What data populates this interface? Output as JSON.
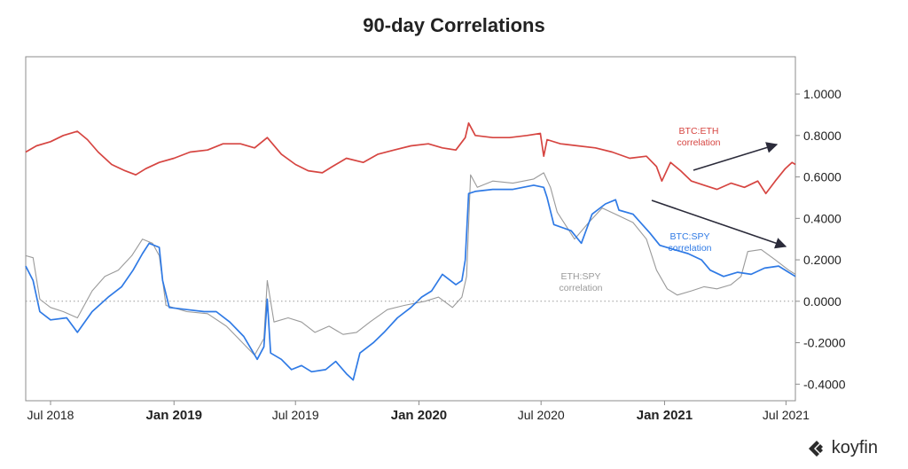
{
  "chart_data": {
    "type": "line",
    "title": "90-day Correlations",
    "xlabel": "",
    "ylabel": "",
    "x_ticks": [
      {
        "label": "Jul 2018",
        "date": "2018-07-01",
        "bold": false
      },
      {
        "label": "Jan 2019",
        "date": "2019-01-01",
        "bold": true
      },
      {
        "label": "Jul 2019",
        "date": "2019-07-01",
        "bold": false
      },
      {
        "label": "Jan 2020",
        "date": "2020-01-01",
        "bold": true
      },
      {
        "label": "Jul 2020",
        "date": "2020-07-01",
        "bold": false
      },
      {
        "label": "Jan 2021",
        "date": "2021-01-01",
        "bold": true
      },
      {
        "label": "Jul 2021",
        "date": "2021-07-01",
        "bold": false
      }
    ],
    "xlim": [
      "2018-05-25",
      "2021-07-15"
    ],
    "ylim": [
      -0.48,
      1.18
    ],
    "y_ticks": [
      {
        "label": "1.0000",
        "value": 1.0
      },
      {
        "label": "0.8000",
        "value": 0.8
      },
      {
        "label": "0.6000",
        "value": 0.6
      },
      {
        "label": "0.4000",
        "value": 0.4
      },
      {
        "label": "0.2000",
        "value": 0.2
      },
      {
        "label": "0.0000",
        "value": 0.0
      },
      {
        "label": "-0.2000",
        "value": -0.2
      },
      {
        "label": "-0.4000",
        "value": -0.4
      }
    ],
    "y_axis_position": "right",
    "zero_line": "dotted",
    "grid": false,
    "series": [
      {
        "name": "BTC:ETH correlation",
        "color": "#d64541",
        "points": [
          [
            "2018-05-25",
            0.72
          ],
          [
            "2018-06-10",
            0.75
          ],
          [
            "2018-07-01",
            0.77
          ],
          [
            "2018-07-20",
            0.8
          ],
          [
            "2018-08-10",
            0.82
          ],
          [
            "2018-08-25",
            0.78
          ],
          [
            "2018-09-10",
            0.72
          ],
          [
            "2018-09-30",
            0.66
          ],
          [
            "2018-10-20",
            0.63
          ],
          [
            "2018-11-05",
            0.61
          ],
          [
            "2018-11-20",
            0.64
          ],
          [
            "2018-12-10",
            0.67
          ],
          [
            "2019-01-01",
            0.69
          ],
          [
            "2019-01-25",
            0.72
          ],
          [
            "2019-02-20",
            0.73
          ],
          [
            "2019-03-15",
            0.76
          ],
          [
            "2019-04-10",
            0.76
          ],
          [
            "2019-05-01",
            0.74
          ],
          [
            "2019-05-20",
            0.79
          ],
          [
            "2019-06-10",
            0.71
          ],
          [
            "2019-07-01",
            0.66
          ],
          [
            "2019-07-20",
            0.63
          ],
          [
            "2019-08-10",
            0.62
          ],
          [
            "2019-08-25",
            0.65
          ],
          [
            "2019-09-15",
            0.69
          ],
          [
            "2019-10-10",
            0.67
          ],
          [
            "2019-11-01",
            0.71
          ],
          [
            "2019-11-25",
            0.73
          ],
          [
            "2019-12-20",
            0.75
          ],
          [
            "2020-01-15",
            0.76
          ],
          [
            "2020-02-05",
            0.74
          ],
          [
            "2020-02-25",
            0.73
          ],
          [
            "2020-03-10",
            0.79
          ],
          [
            "2020-03-15",
            0.86
          ],
          [
            "2020-03-25",
            0.8
          ],
          [
            "2020-04-20",
            0.79
          ],
          [
            "2020-05-15",
            0.79
          ],
          [
            "2020-06-10",
            0.8
          ],
          [
            "2020-06-30",
            0.81
          ],
          [
            "2020-07-05",
            0.7
          ],
          [
            "2020-07-10",
            0.78
          ],
          [
            "2020-07-30",
            0.76
          ],
          [
            "2020-08-25",
            0.75
          ],
          [
            "2020-09-20",
            0.74
          ],
          [
            "2020-10-15",
            0.72
          ],
          [
            "2020-11-10",
            0.69
          ],
          [
            "2020-12-05",
            0.7
          ],
          [
            "2020-12-20",
            0.65
          ],
          [
            "2020-12-28",
            0.58
          ],
          [
            "2021-01-10",
            0.67
          ],
          [
            "2021-01-25",
            0.63
          ],
          [
            "2021-02-10",
            0.58
          ],
          [
            "2021-03-01",
            0.56
          ],
          [
            "2021-03-20",
            0.54
          ],
          [
            "2021-04-10",
            0.57
          ],
          [
            "2021-04-30",
            0.55
          ],
          [
            "2021-05-20",
            0.58
          ],
          [
            "2021-06-01",
            0.52
          ],
          [
            "2021-06-15",
            0.58
          ],
          [
            "2021-06-30",
            0.64
          ],
          [
            "2021-07-10",
            0.67
          ],
          [
            "2021-07-15",
            0.66
          ]
        ]
      },
      {
        "name": "BTC:SPY correlation",
        "color": "#2f7ae5",
        "points": [
          [
            "2018-05-25",
            0.17
          ],
          [
            "2018-06-05",
            0.1
          ],
          [
            "2018-06-15",
            -0.05
          ],
          [
            "2018-07-01",
            -0.09
          ],
          [
            "2018-07-25",
            -0.08
          ],
          [
            "2018-08-10",
            -0.15
          ],
          [
            "2018-09-01",
            -0.05
          ],
          [
            "2018-09-25",
            0.02
          ],
          [
            "2018-10-15",
            0.07
          ],
          [
            "2018-11-01",
            0.15
          ],
          [
            "2018-11-15",
            0.23
          ],
          [
            "2018-11-25",
            0.28
          ],
          [
            "2018-12-10",
            0.26
          ],
          [
            "2018-12-15",
            0.1
          ],
          [
            "2018-12-25",
            -0.03
          ],
          [
            "2019-01-20",
            -0.04
          ],
          [
            "2019-02-15",
            -0.05
          ],
          [
            "2019-03-05",
            -0.05
          ],
          [
            "2019-03-25",
            -0.1
          ],
          [
            "2019-04-15",
            -0.17
          ],
          [
            "2019-05-05",
            -0.28
          ],
          [
            "2019-05-15",
            -0.22
          ],
          [
            "2019-05-20",
            0.01
          ],
          [
            "2019-05-25",
            -0.25
          ],
          [
            "2019-06-10",
            -0.28
          ],
          [
            "2019-06-25",
            -0.33
          ],
          [
            "2019-07-10",
            -0.31
          ],
          [
            "2019-07-25",
            -0.34
          ],
          [
            "2019-08-15",
            -0.33
          ],
          [
            "2019-08-30",
            -0.29
          ],
          [
            "2019-09-15",
            -0.35
          ],
          [
            "2019-09-25",
            -0.38
          ],
          [
            "2019-10-05",
            -0.25
          ],
          [
            "2019-10-25",
            -0.2
          ],
          [
            "2019-11-10",
            -0.15
          ],
          [
            "2019-11-30",
            -0.08
          ],
          [
            "2019-12-20",
            -0.03
          ],
          [
            "2020-01-05",
            0.02
          ],
          [
            "2020-01-20",
            0.05
          ],
          [
            "2020-02-05",
            0.13
          ],
          [
            "2020-02-25",
            0.08
          ],
          [
            "2020-03-05",
            0.1
          ],
          [
            "2020-03-10",
            0.2
          ],
          [
            "2020-03-15",
            0.52
          ],
          [
            "2020-03-25",
            0.53
          ],
          [
            "2020-04-20",
            0.54
          ],
          [
            "2020-05-20",
            0.54
          ],
          [
            "2020-06-20",
            0.56
          ],
          [
            "2020-07-05",
            0.55
          ],
          [
            "2020-07-10",
            0.5
          ],
          [
            "2020-07-20",
            0.37
          ],
          [
            "2020-08-15",
            0.34
          ],
          [
            "2020-08-30",
            0.28
          ],
          [
            "2020-09-15",
            0.42
          ],
          [
            "2020-10-05",
            0.47
          ],
          [
            "2020-10-20",
            0.49
          ],
          [
            "2020-10-25",
            0.44
          ],
          [
            "2020-11-15",
            0.42
          ],
          [
            "2020-12-10",
            0.33
          ],
          [
            "2020-12-25",
            0.27
          ],
          [
            "2021-01-15",
            0.25
          ],
          [
            "2021-02-05",
            0.23
          ],
          [
            "2021-02-25",
            0.2
          ],
          [
            "2021-03-10",
            0.15
          ],
          [
            "2021-03-30",
            0.12
          ],
          [
            "2021-04-20",
            0.14
          ],
          [
            "2021-05-10",
            0.13
          ],
          [
            "2021-05-30",
            0.16
          ],
          [
            "2021-06-20",
            0.17
          ],
          [
            "2021-07-05",
            0.14
          ],
          [
            "2021-07-15",
            0.12
          ]
        ]
      },
      {
        "name": "ETH:SPY correlation",
        "color": "#9a9a9a",
        "points": [
          [
            "2018-05-25",
            0.22
          ],
          [
            "2018-06-05",
            0.21
          ],
          [
            "2018-06-15",
            0.01
          ],
          [
            "2018-07-01",
            -0.03
          ],
          [
            "2018-07-20",
            -0.05
          ],
          [
            "2018-08-10",
            -0.08
          ],
          [
            "2018-09-01",
            0.05
          ],
          [
            "2018-09-20",
            0.12
          ],
          [
            "2018-10-10",
            0.15
          ],
          [
            "2018-10-30",
            0.22
          ],
          [
            "2018-11-15",
            0.3
          ],
          [
            "2018-11-30",
            0.28
          ],
          [
            "2018-12-10",
            0.22
          ],
          [
            "2018-12-20",
            -0.02
          ],
          [
            "2019-01-20",
            -0.05
          ],
          [
            "2019-02-20",
            -0.06
          ],
          [
            "2019-03-20",
            -0.12
          ],
          [
            "2019-04-10",
            -0.19
          ],
          [
            "2019-05-01",
            -0.26
          ],
          [
            "2019-05-15",
            -0.18
          ],
          [
            "2019-05-20",
            0.1
          ],
          [
            "2019-05-30",
            -0.1
          ],
          [
            "2019-06-20",
            -0.08
          ],
          [
            "2019-07-10",
            -0.1
          ],
          [
            "2019-07-30",
            -0.15
          ],
          [
            "2019-08-20",
            -0.12
          ],
          [
            "2019-09-10",
            -0.16
          ],
          [
            "2019-09-30",
            -0.15
          ],
          [
            "2019-10-20",
            -0.1
          ],
          [
            "2019-11-15",
            -0.04
          ],
          [
            "2019-12-10",
            -0.02
          ],
          [
            "2020-01-10",
            0.0
          ],
          [
            "2020-01-30",
            0.02
          ],
          [
            "2020-02-20",
            -0.03
          ],
          [
            "2020-03-05",
            0.02
          ],
          [
            "2020-03-12",
            0.12
          ],
          [
            "2020-03-18",
            0.61
          ],
          [
            "2020-03-28",
            0.55
          ],
          [
            "2020-04-20",
            0.58
          ],
          [
            "2020-05-20",
            0.57
          ],
          [
            "2020-06-20",
            0.59
          ],
          [
            "2020-07-05",
            0.62
          ],
          [
            "2020-07-15",
            0.55
          ],
          [
            "2020-07-25",
            0.43
          ],
          [
            "2020-08-20",
            0.3
          ],
          [
            "2020-09-10",
            0.38
          ],
          [
            "2020-09-30",
            0.45
          ],
          [
            "2020-10-20",
            0.42
          ],
          [
            "2020-11-15",
            0.38
          ],
          [
            "2020-12-05",
            0.3
          ],
          [
            "2020-12-20",
            0.15
          ],
          [
            "2021-01-05",
            0.06
          ],
          [
            "2021-01-20",
            0.03
          ],
          [
            "2021-02-10",
            0.05
          ],
          [
            "2021-03-01",
            0.07
          ],
          [
            "2021-03-20",
            0.06
          ],
          [
            "2021-04-10",
            0.08
          ],
          [
            "2021-04-25",
            0.12
          ],
          [
            "2021-05-05",
            0.24
          ],
          [
            "2021-05-25",
            0.25
          ],
          [
            "2021-06-15",
            0.2
          ],
          [
            "2021-07-05",
            0.15
          ],
          [
            "2021-07-15",
            0.13
          ]
        ]
      }
    ],
    "annotations": [
      {
        "lines": [
          "BTC:ETH",
          "correlation"
        ],
        "color": "#d64541",
        "near_series": "BTC:ETH correlation"
      },
      {
        "lines": [
          "BTC:SPY",
          "correlation"
        ],
        "color": "#2f7ae5",
        "near_series": "BTC:SPY correlation"
      },
      {
        "lines": [
          "ETH:SPY",
          "correlation"
        ],
        "color": "#9a9a9a",
        "near_series": "ETH:SPY correlation"
      }
    ],
    "arrows": [
      {
        "direction": "up-right",
        "from_series": "BTC:ETH correlation"
      },
      {
        "direction": "down-right",
        "from_series": "BTC:SPY correlation"
      }
    ]
  },
  "brand": {
    "name": "koyfin",
    "logo_icon": "koyfin-logo-icon"
  }
}
